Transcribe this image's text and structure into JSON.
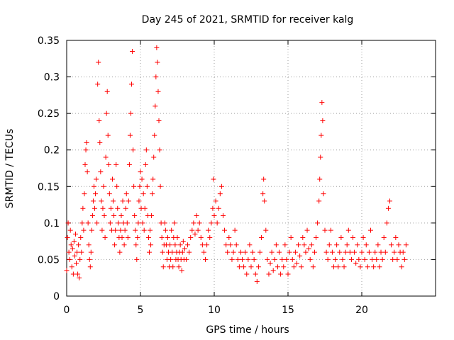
{
  "chart_data": {
    "type": "scatter",
    "title": "Day 245 of 2021, SRMTID for receiver kalg",
    "xlabel": "GPS time / hours",
    "ylabel": "SRMTID / TECUs",
    "xlim": [
      0,
      25
    ],
    "ylim": [
      0,
      0.35
    ],
    "xticks": [
      0,
      5,
      10,
      15,
      20
    ],
    "xtick_labels": [
      "0",
      "5",
      "10",
      "15",
      "20"
    ],
    "yticks": [
      0,
      0.05,
      0.1,
      0.15,
      0.2,
      0.25,
      0.3,
      0.35
    ],
    "ytick_labels": [
      "0",
      "0.05",
      "0.1",
      "0.15",
      "0.2",
      "0.25",
      "0.3",
      "0.35"
    ],
    "grid": true,
    "marker": "plus",
    "color": "#ff0000",
    "series": [
      {
        "name": "SRMTID",
        "points": [
          [
            0.0,
            0.035
          ],
          [
            0.05,
            0.08
          ],
          [
            0.1,
            0.1
          ],
          [
            0.15,
            0.06
          ],
          [
            0.2,
            0.05
          ],
          [
            0.25,
            0.09
          ],
          [
            0.3,
            0.07
          ],
          [
            0.35,
            0.04
          ],
          [
            0.4,
            0.065
          ],
          [
            0.45,
            0.03
          ],
          [
            0.5,
            0.075
          ],
          [
            0.55,
            0.055
          ],
          [
            0.6,
            0.085
          ],
          [
            0.65,
            0.045
          ],
          [
            0.7,
            0.06
          ],
          [
            0.75,
            0.03
          ],
          [
            0.8,
            0.07
          ],
          [
            0.85,
            0.025
          ],
          [
            0.9,
            0.05
          ],
          [
            0.95,
            0.08
          ],
          [
            1.0,
            0.06
          ],
          [
            1.05,
            0.1
          ],
          [
            1.1,
            0.12
          ],
          [
            1.15,
            0.09
          ],
          [
            1.2,
            0.14
          ],
          [
            1.25,
            0.18
          ],
          [
            1.3,
            0.2
          ],
          [
            1.35,
            0.21
          ],
          [
            1.4,
            0.17
          ],
          [
            1.45,
            0.1
          ],
          [
            1.5,
            0.07
          ],
          [
            1.55,
            0.05
          ],
          [
            1.6,
            0.04
          ],
          [
            1.65,
            0.06
          ],
          [
            1.7,
            0.09
          ],
          [
            1.75,
            0.11
          ],
          [
            1.8,
            0.13
          ],
          [
            1.85,
            0.15
          ],
          [
            1.9,
            0.12
          ],
          [
            1.95,
            0.14
          ],
          [
            2.0,
            0.16
          ],
          [
            2.05,
            0.1
          ],
          [
            2.1,
            0.29
          ],
          [
            2.15,
            0.32
          ],
          [
            2.2,
            0.24
          ],
          [
            2.25,
            0.21
          ],
          [
            2.3,
            0.17
          ],
          [
            2.35,
            0.13
          ],
          [
            2.4,
            0.09
          ],
          [
            2.45,
            0.12
          ],
          [
            2.5,
            0.15
          ],
          [
            2.55,
            0.11
          ],
          [
            2.6,
            0.08
          ],
          [
            2.65,
            0.19
          ],
          [
            2.7,
            0.25
          ],
          [
            2.75,
            0.28
          ],
          [
            2.8,
            0.22
          ],
          [
            2.85,
            0.18
          ],
          [
            2.9,
            0.14
          ],
          [
            2.95,
            0.1
          ],
          [
            3.0,
            0.12
          ],
          [
            3.05,
            0.09
          ],
          [
            3.1,
            0.16
          ],
          [
            3.15,
            0.13
          ],
          [
            3.2,
            0.11
          ],
          [
            3.25,
            0.07
          ],
          [
            3.3,
            0.09
          ],
          [
            3.35,
            0.18
          ],
          [
            3.4,
            0.15
          ],
          [
            3.45,
            0.12
          ],
          [
            3.5,
            0.1
          ],
          [
            3.55,
            0.08
          ],
          [
            3.6,
            0.06
          ],
          [
            3.65,
            0.09
          ],
          [
            3.7,
            0.11
          ],
          [
            3.75,
            0.08
          ],
          [
            3.8,
            0.13
          ],
          [
            3.85,
            0.1
          ],
          [
            3.9,
            0.07
          ],
          [
            3.95,
            0.09
          ],
          [
            4.0,
            0.12
          ],
          [
            4.05,
            0.14
          ],
          [
            4.1,
            0.1
          ],
          [
            4.15,
            0.08
          ],
          [
            4.2,
            0.13
          ],
          [
            4.25,
            0.18
          ],
          [
            4.3,
            0.22
          ],
          [
            4.35,
            0.25
          ],
          [
            4.4,
            0.29
          ],
          [
            4.45,
            0.335
          ],
          [
            4.5,
            0.2
          ],
          [
            4.55,
            0.15
          ],
          [
            4.6,
            0.11
          ],
          [
            4.65,
            0.09
          ],
          [
            4.7,
            0.07
          ],
          [
            4.75,
            0.05
          ],
          [
            4.8,
            0.08
          ],
          [
            4.85,
            0.1
          ],
          [
            4.9,
            0.13
          ],
          [
            4.95,
            0.15
          ],
          [
            5.0,
            0.17
          ],
          [
            5.05,
            0.12
          ],
          [
            5.1,
            0.16
          ],
          [
            5.15,
            0.1
          ],
          [
            5.2,
            0.14
          ],
          [
            5.25,
            0.09
          ],
          [
            5.3,
            0.12
          ],
          [
            5.35,
            0.18
          ],
          [
            5.4,
            0.2
          ],
          [
            5.45,
            0.15
          ],
          [
            5.5,
            0.11
          ],
          [
            5.55,
            0.08
          ],
          [
            5.6,
            0.06
          ],
          [
            5.65,
            0.09
          ],
          [
            5.7,
            0.07
          ],
          [
            5.75,
            0.11
          ],
          [
            5.8,
            0.14
          ],
          [
            5.85,
            0.16
          ],
          [
            5.9,
            0.19
          ],
          [
            5.95,
            0.22
          ],
          [
            6.0,
            0.26
          ],
          [
            6.05,
            0.3
          ],
          [
            6.1,
            0.34
          ],
          [
            6.15,
            0.32
          ],
          [
            6.2,
            0.28
          ],
          [
            6.25,
            0.24
          ],
          [
            6.3,
            0.2
          ],
          [
            6.35,
            0.15
          ],
          [
            6.4,
            0.1
          ],
          [
            6.45,
            0.08
          ],
          [
            6.5,
            0.06
          ],
          [
            6.55,
            0.04
          ],
          [
            6.6,
            0.07
          ],
          [
            6.65,
            0.1
          ],
          [
            6.7,
            0.09
          ],
          [
            6.75,
            0.07
          ],
          [
            6.8,
            0.05
          ],
          [
            6.85,
            0.08
          ],
          [
            6.9,
            0.06
          ],
          [
            6.95,
            0.04
          ],
          [
            7.0,
            0.07
          ],
          [
            7.05,
            0.05
          ],
          [
            7.1,
            0.09
          ],
          [
            7.15,
            0.06
          ],
          [
            7.2,
            0.04
          ],
          [
            7.25,
            0.08
          ],
          [
            7.3,
            0.1
          ],
          [
            7.35,
            0.07
          ],
          [
            7.4,
            0.05
          ],
          [
            7.45,
            0.06
          ],
          [
            7.5,
            0.08
          ],
          [
            7.55,
            0.05
          ],
          [
            7.6,
            0.04
          ],
          [
            7.65,
            0.06
          ],
          [
            7.7,
            0.07
          ],
          [
            7.75,
            0.05
          ],
          [
            7.8,
            0.035
          ],
          [
            7.85,
            0.06
          ],
          [
            7.9,
            0.075
          ],
          [
            7.95,
            0.05
          ],
          [
            8.0,
            0.065
          ],
          [
            8.1,
            0.05
          ],
          [
            8.2,
            0.07
          ],
          [
            8.3,
            0.06
          ],
          [
            8.4,
            0.08
          ],
          [
            8.5,
            0.09
          ],
          [
            8.6,
            0.1
          ],
          [
            8.7,
            0.085
          ],
          [
            8.8,
            0.11
          ],
          [
            8.9,
            0.09
          ],
          [
            9.0,
            0.1
          ],
          [
            9.1,
            0.08
          ],
          [
            9.2,
            0.07
          ],
          [
            9.3,
            0.06
          ],
          [
            9.4,
            0.05
          ],
          [
            9.5,
            0.07
          ],
          [
            9.6,
            0.09
          ],
          [
            9.7,
            0.08
          ],
          [
            9.8,
            0.1
          ],
          [
            9.9,
            0.12
          ],
          [
            9.95,
            0.16
          ],
          [
            10.0,
            0.11
          ],
          [
            10.1,
            0.13
          ],
          [
            10.2,
            0.1
          ],
          [
            10.3,
            0.12
          ],
          [
            10.4,
            0.14
          ],
          [
            10.5,
            0.15
          ],
          [
            10.6,
            0.11
          ],
          [
            10.7,
            0.09
          ],
          [
            10.8,
            0.07
          ],
          [
            10.9,
            0.06
          ],
          [
            11.0,
            0.08
          ],
          [
            11.1,
            0.07
          ],
          [
            11.2,
            0.05
          ],
          [
            11.3,
            0.06
          ],
          [
            11.4,
            0.09
          ],
          [
            11.5,
            0.07
          ],
          [
            11.6,
            0.05
          ],
          [
            11.7,
            0.04
          ],
          [
            11.8,
            0.06
          ],
          [
            11.9,
            0.05
          ],
          [
            12.0,
            0.04
          ],
          [
            12.1,
            0.06
          ],
          [
            12.2,
            0.03
          ],
          [
            12.3,
            0.05
          ],
          [
            12.4,
            0.07
          ],
          [
            12.5,
            0.04
          ],
          [
            12.6,
            0.06
          ],
          [
            12.7,
            0.05
          ],
          [
            12.8,
            0.03
          ],
          [
            12.9,
            0.02
          ],
          [
            13.0,
            0.04
          ],
          [
            13.1,
            0.06
          ],
          [
            13.2,
            0.08
          ],
          [
            13.3,
            0.14
          ],
          [
            13.35,
            0.16
          ],
          [
            13.4,
            0.13
          ],
          [
            13.5,
            0.09
          ],
          [
            13.6,
            0.05
          ],
          [
            13.7,
            0.03
          ],
          [
            13.8,
            0.045
          ],
          [
            13.9,
            0.06
          ],
          [
            14.0,
            0.035
          ],
          [
            14.1,
            0.05
          ],
          [
            14.2,
            0.07
          ],
          [
            14.3,
            0.04
          ],
          [
            14.4,
            0.06
          ],
          [
            14.5,
            0.03
          ],
          [
            14.6,
            0.05
          ],
          [
            14.7,
            0.04
          ],
          [
            14.8,
            0.07
          ],
          [
            14.9,
            0.05
          ],
          [
            15.0,
            0.03
          ],
          [
            15.1,
            0.06
          ],
          [
            15.2,
            0.08
          ],
          [
            15.3,
            0.05
          ],
          [
            15.4,
            0.04
          ],
          [
            15.5,
            0.06
          ],
          [
            15.6,
            0.045
          ],
          [
            15.7,
            0.07
          ],
          [
            15.8,
            0.055
          ],
          [
            15.9,
            0.04
          ],
          [
            16.0,
            0.08
          ],
          [
            16.1,
            0.07
          ],
          [
            16.2,
            0.06
          ],
          [
            16.3,
            0.09
          ],
          [
            16.4,
            0.065
          ],
          [
            16.5,
            0.05
          ],
          [
            16.6,
            0.07
          ],
          [
            16.7,
            0.04
          ],
          [
            16.8,
            0.06
          ],
          [
            16.9,
            0.08
          ],
          [
            17.0,
            0.1
          ],
          [
            17.1,
            0.13
          ],
          [
            17.15,
            0.16
          ],
          [
            17.2,
            0.19
          ],
          [
            17.25,
            0.22
          ],
          [
            17.3,
            0.265
          ],
          [
            17.35,
            0.24
          ],
          [
            17.4,
            0.14
          ],
          [
            17.5,
            0.09
          ],
          [
            17.6,
            0.06
          ],
          [
            17.7,
            0.05
          ],
          [
            17.8,
            0.07
          ],
          [
            17.9,
            0.09
          ],
          [
            18.0,
            0.06
          ],
          [
            18.1,
            0.04
          ],
          [
            18.2,
            0.05
          ],
          [
            18.3,
            0.07
          ],
          [
            18.4,
            0.04
          ],
          [
            18.5,
            0.06
          ],
          [
            18.6,
            0.08
          ],
          [
            18.7,
            0.05
          ],
          [
            18.8,
            0.04
          ],
          [
            18.9,
            0.06
          ],
          [
            19.0,
            0.07
          ],
          [
            19.1,
            0.09
          ],
          [
            19.2,
            0.06
          ],
          [
            19.3,
            0.05
          ],
          [
            19.4,
            0.08
          ],
          [
            19.5,
            0.06
          ],
          [
            19.6,
            0.045
          ],
          [
            19.7,
            0.07
          ],
          [
            19.8,
            0.05
          ],
          [
            19.9,
            0.04
          ],
          [
            20.0,
            0.06
          ],
          [
            20.1,
            0.08
          ],
          [
            20.2,
            0.05
          ],
          [
            20.3,
            0.07
          ],
          [
            20.4,
            0.04
          ],
          [
            20.5,
            0.06
          ],
          [
            20.6,
            0.09
          ],
          [
            20.7,
            0.05
          ],
          [
            20.8,
            0.04
          ],
          [
            20.9,
            0.06
          ],
          [
            21.0,
            0.05
          ],
          [
            21.1,
            0.07
          ],
          [
            21.2,
            0.04
          ],
          [
            21.3,
            0.06
          ],
          [
            21.4,
            0.05
          ],
          [
            21.5,
            0.08
          ],
          [
            21.6,
            0.06
          ],
          [
            21.7,
            0.1
          ],
          [
            21.8,
            0.12
          ],
          [
            21.9,
            0.13
          ],
          [
            22.0,
            0.07
          ],
          [
            22.1,
            0.05
          ],
          [
            22.2,
            0.06
          ],
          [
            22.3,
            0.08
          ],
          [
            22.4,
            0.05
          ],
          [
            22.5,
            0.07
          ],
          [
            22.6,
            0.06
          ],
          [
            22.7,
            0.04
          ],
          [
            22.8,
            0.06
          ],
          [
            22.9,
            0.05
          ],
          [
            23.0,
            0.07
          ]
        ]
      }
    ]
  }
}
